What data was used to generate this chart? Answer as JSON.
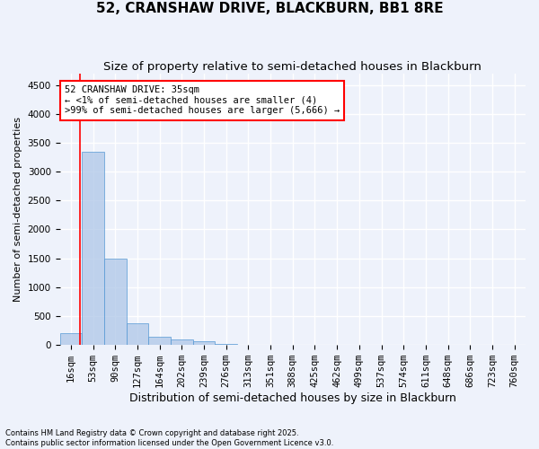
{
  "title": "52, CRANSHAW DRIVE, BLACKBURN, BB1 8RE",
  "subtitle": "Size of property relative to semi-detached houses in Blackburn",
  "xlabel": "Distribution of semi-detached houses by size in Blackburn",
  "ylabel": "Number of semi-detached properties",
  "categories": [
    "16sqm",
    "53sqm",
    "90sqm",
    "127sqm",
    "164sqm",
    "202sqm",
    "239sqm",
    "276sqm",
    "313sqm",
    "351sqm",
    "388sqm",
    "425sqm",
    "462sqm",
    "499sqm",
    "537sqm",
    "574sqm",
    "611sqm",
    "648sqm",
    "686sqm",
    "723sqm",
    "760sqm"
  ],
  "values": [
    200,
    3350,
    1500,
    375,
    150,
    90,
    60,
    20,
    10,
    5,
    3,
    2,
    1,
    1,
    1,
    0,
    0,
    0,
    0,
    0,
    0
  ],
  "bar_color": "#aec6e8",
  "bar_edge_color": "#5b9bd5",
  "bar_alpha": 0.75,
  "red_line_x": 0.42,
  "annotation_text": "52 CRANSHAW DRIVE: 35sqm\n← <1% of semi-detached houses are smaller (4)\n>99% of semi-detached houses are larger (5,666) →",
  "ylim": [
    0,
    4700
  ],
  "yticks": [
    0,
    500,
    1000,
    1500,
    2000,
    2500,
    3000,
    3500,
    4000,
    4500
  ],
  "footnote": "Contains HM Land Registry data © Crown copyright and database right 2025.\nContains public sector information licensed under the Open Government Licence v3.0.",
  "background_color": "#eef2fb",
  "grid_color": "#ffffff",
  "title_fontsize": 11,
  "subtitle_fontsize": 9.5,
  "annotation_fontsize": 7.5,
  "ylabel_fontsize": 8,
  "xlabel_fontsize": 9,
  "tick_fontsize": 7.5,
  "footnote_fontsize": 6
}
